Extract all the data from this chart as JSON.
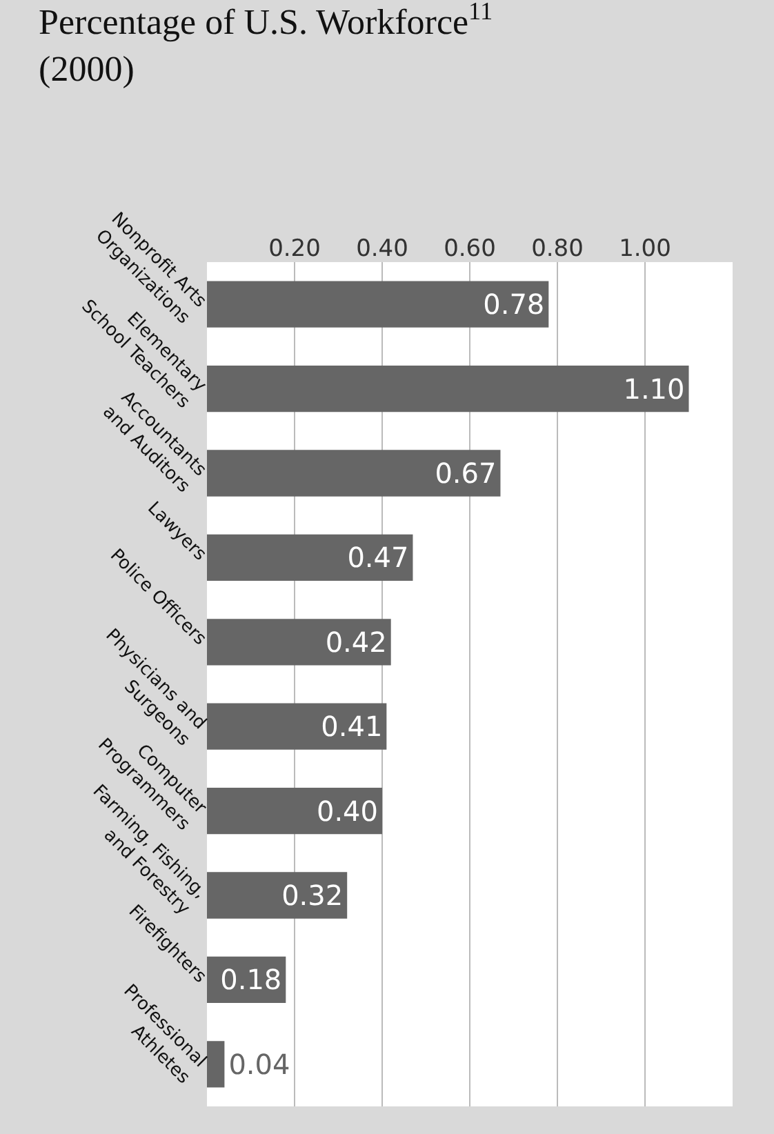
{
  "chart_data": {
    "type": "bar",
    "orientation": "horizontal",
    "title": "Percentage of U.S. Workforce$^{11}$",
    "subtitle": "(2000)",
    "categories": [
      "Nonprofit Arts\nOrganizations",
      "Elementary\nSchool Teachers",
      "Accountants\nand Auditors",
      "Lawyers",
      "Police Officers",
      "Physicians and\nSurgeons",
      "Computer\nProgrammers",
      "Farming, Fishing,\nand Forestry",
      "Firefighters",
      "Professional\nAthletes"
    ],
    "values": [
      0.78,
      1.1,
      0.67,
      0.47,
      0.42,
      0.41,
      0.4,
      0.32,
      0.18,
      0.04
    ],
    "value_labels": [
      "0.78",
      "1.10",
      "0.67",
      "0.47",
      "0.42",
      "0.41",
      "0.40",
      "0.32",
      "0.18",
      "0.04"
    ],
    "color": "#666666",
    "xlim": [
      0,
      1.2
    ],
    "xticks": [
      {
        "value": 0.2,
        "label": "0.20"
      },
      {
        "value": 0.4,
        "label": "0.40"
      },
      {
        "value": 0.6,
        "label": "0.60"
      },
      {
        "value": 0.8,
        "label": "0.80"
      },
      {
        "value": 1.0,
        "label": "1.00"
      }
    ],
    "grid": "x"
  }
}
